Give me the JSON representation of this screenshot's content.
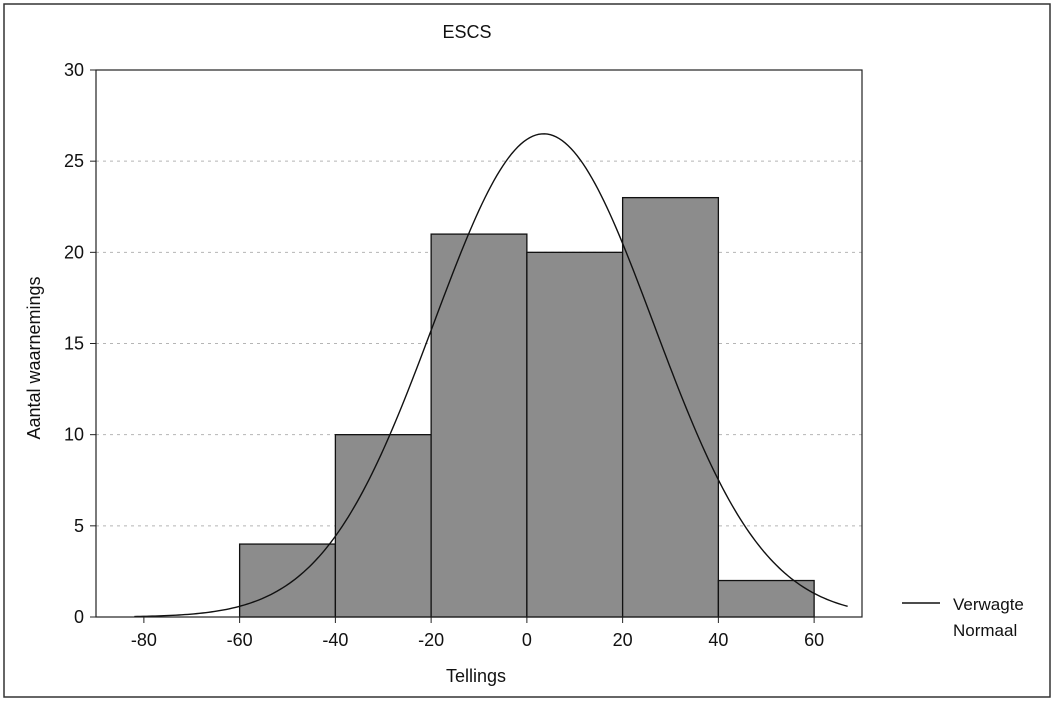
{
  "chart_data": {
    "type": "bar",
    "title": "ESCS",
    "xlabel": "Tellings",
    "ylabel": "Aantal waarnemings",
    "bins": [
      {
        "from": -60,
        "to": -40,
        "value": 4
      },
      {
        "from": -40,
        "to": -20,
        "value": 10
      },
      {
        "from": -20,
        "to": 0,
        "value": 21
      },
      {
        "from": 0,
        "to": 20,
        "value": 20
      },
      {
        "from": 20,
        "to": 40,
        "value": 23
      },
      {
        "from": 40,
        "to": 60,
        "value": 2
      }
    ],
    "xlim": [
      -90,
      70
    ],
    "ylim": [
      0,
      30
    ],
    "xticks": [
      -80,
      -60,
      -40,
      -20,
      0,
      20,
      40,
      60
    ],
    "yticks": [
      0,
      5,
      10,
      15,
      20,
      25,
      30
    ],
    "grid": true,
    "normal_curve": {
      "mean": 3.5,
      "sd": 23,
      "peak": 26.5
    },
    "legend": {
      "position": "bottom-right",
      "label_line1": "Verwagte",
      "label_line2": "Normaal"
    },
    "colors": {
      "bar_fill": "#8c8c8c",
      "bar_stroke": "#111111",
      "curve": "#111111",
      "grid": "#b5b5b5"
    }
  }
}
